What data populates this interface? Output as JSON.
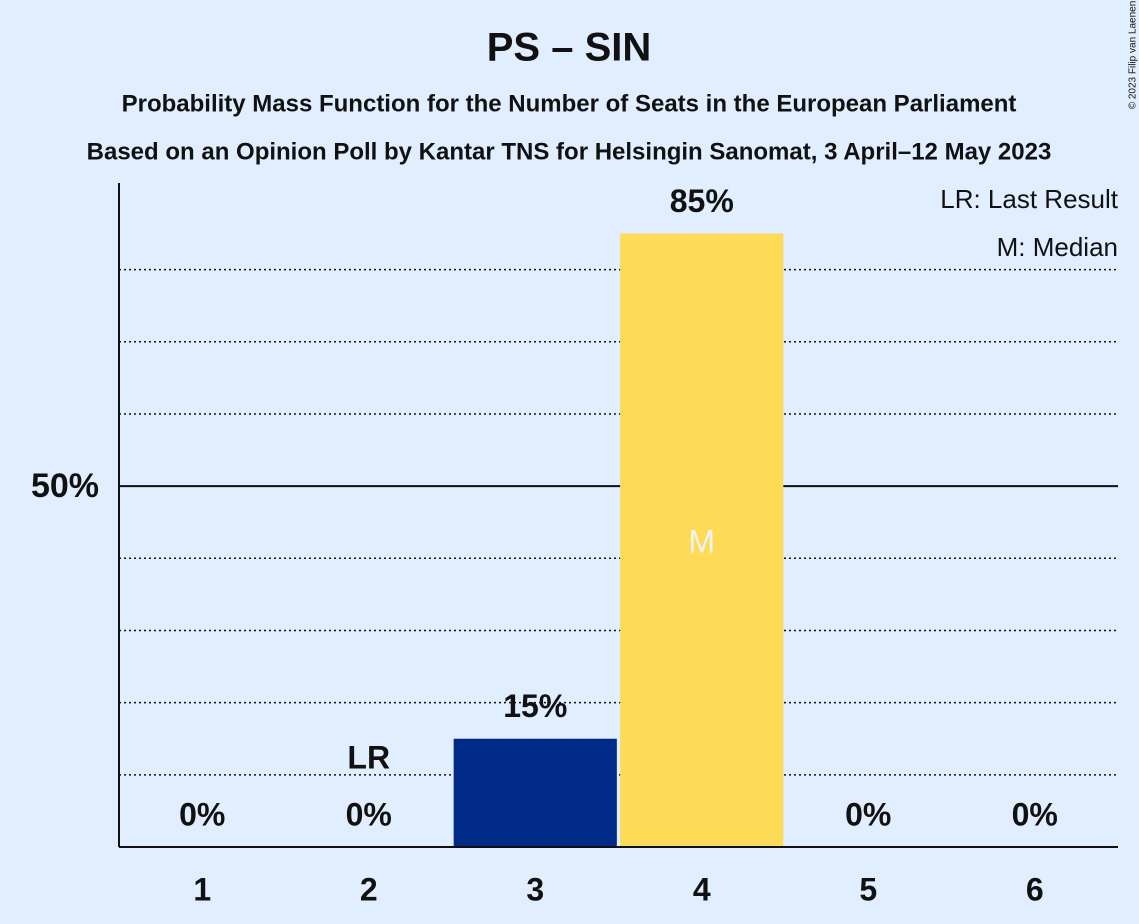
{
  "chart_data": {
    "type": "bar",
    "title": "PS – SIN",
    "subtitles": [
      "Probability Mass Function for the Number of Seats in the European Parliament",
      "Based on an Opinion Poll by Kantar TNS for Helsingin Sanomat, 3 April–12 May 2023"
    ],
    "categories": [
      "1",
      "2",
      "3",
      "4",
      "5",
      "6"
    ],
    "values": [
      0,
      0,
      15,
      85,
      0,
      0
    ],
    "value_labels": [
      "0%",
      "0%",
      "15%",
      "85%",
      "0%",
      "0%"
    ],
    "colors": [
      "#002a87",
      "#002a87",
      "#002a87",
      "#fddb57",
      "#002a87",
      "#002a87"
    ],
    "ylim": [
      0,
      92
    ],
    "yticks": [
      {
        "value": 50,
        "label": "50%"
      }
    ],
    "minor_gridlines": [
      10,
      20,
      30,
      40,
      60,
      70,
      80
    ],
    "annotations": [
      {
        "text": "LR",
        "category": "2",
        "position": "above"
      },
      {
        "text": "M",
        "category": "4",
        "position": "inside"
      }
    ],
    "legend": [
      "LR: Last Result",
      "M: Median"
    ],
    "legend_position": "top-right",
    "copyright": "© 2023 Filip van Laenen"
  }
}
